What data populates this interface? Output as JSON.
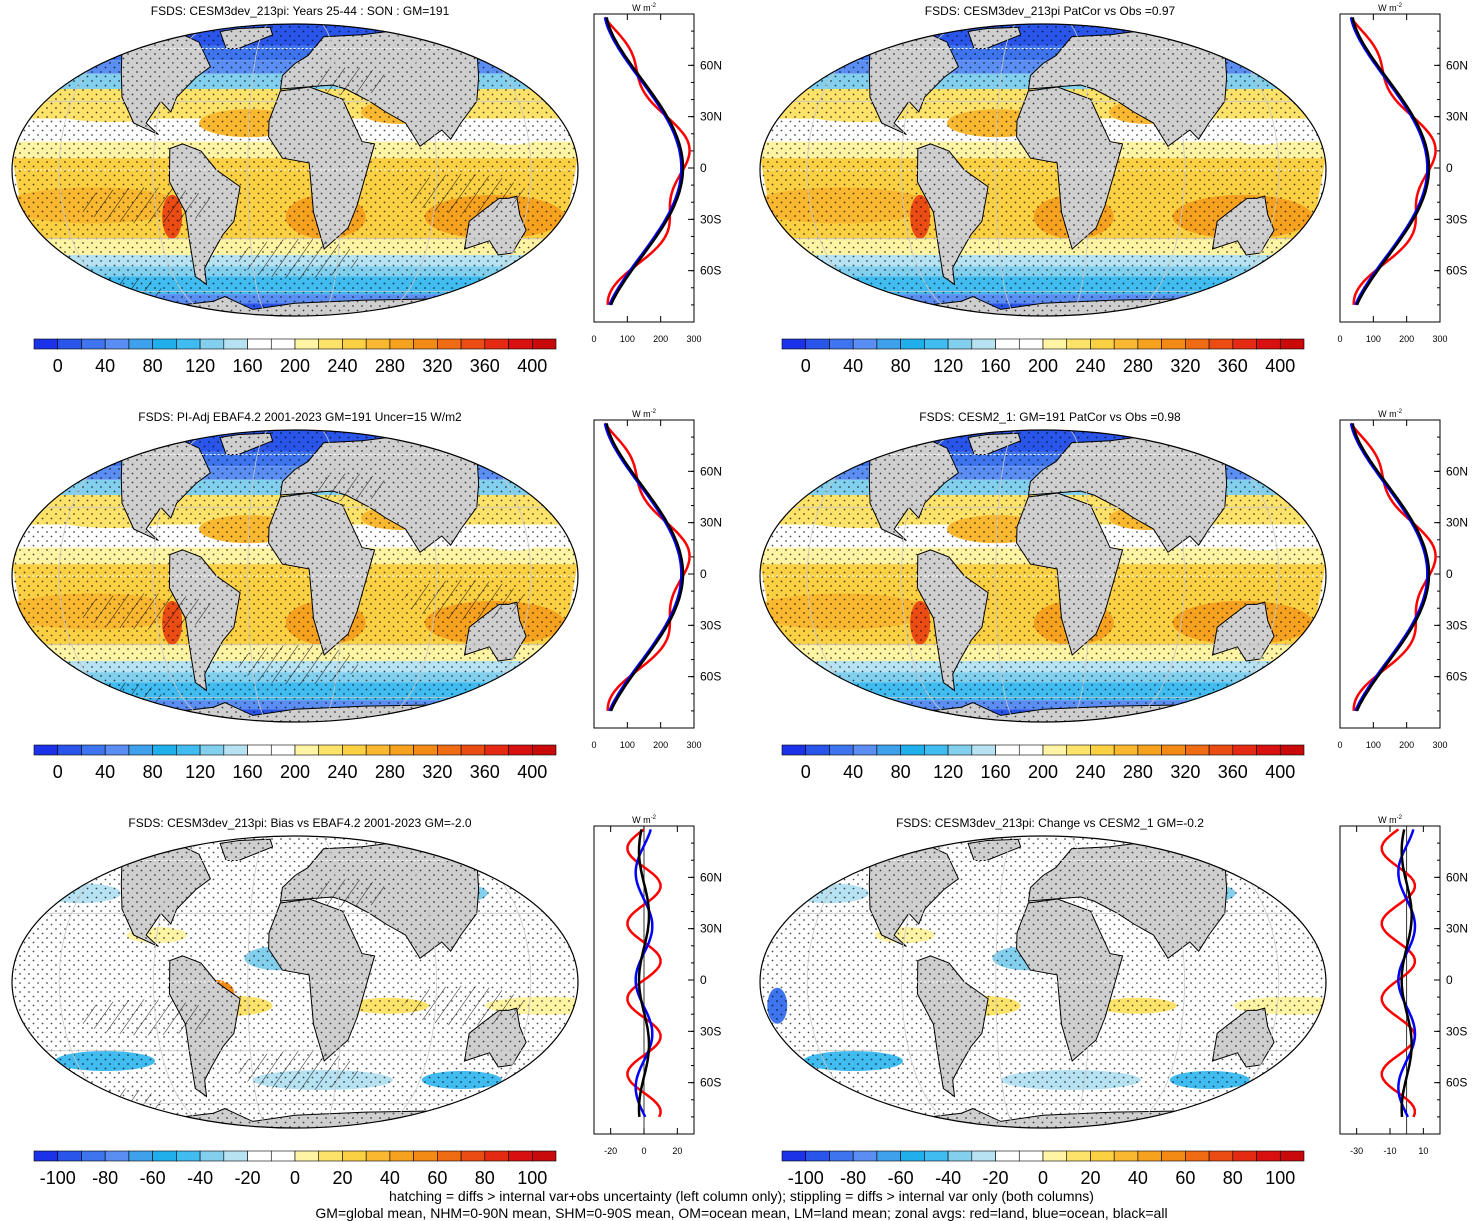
{
  "panels": [
    {
      "title": "FSDS: CESM3dev_213pi: Years 25-44 : SON : GM=191",
      "kind": "abs",
      "hatch": true
    },
    {
      "title": "FSDS: CESM3dev_213pi PatCor vs Obs =0.97",
      "kind": "abs",
      "hatch": false
    },
    {
      "title": "FSDS: PI-Adj EBAF4.2 2001-2023 GM=191 Uncer=15 W/m2",
      "kind": "abs",
      "hatch": true
    },
    {
      "title": "FSDS: CESM2_1: GM=191 PatCor vs Obs =0.98",
      "kind": "abs",
      "hatch": false
    },
    {
      "title": "FSDS: CESM3dev_213pi: Bias vs EBAF4.2 2001-2023  GM=-2.0",
      "kind": "diff",
      "hatch": true
    },
    {
      "title": "FSDS: CESM3dev_213pi: Change vs CESM2_1 GM=-0.2",
      "kind": "diff",
      "hatch": false
    }
  ],
  "colorbar_abs": {
    "labels": [
      "0",
      "40",
      "80",
      "120",
      "160",
      "200",
      "240",
      "280",
      "320",
      "360",
      "400"
    ],
    "colors": [
      "#1c32e8",
      "#2a55ea",
      "#3e74ee",
      "#5a8ef2",
      "#3fa0ec",
      "#1fb0ec",
      "#40bcf0",
      "#82cfee",
      "#b6e2f2",
      "#ffffff",
      "#ffffff",
      "#fff3a4",
      "#fde36a",
      "#fbd043",
      "#f9b830",
      "#f6a21f",
      "#f48a16",
      "#ef6c14",
      "#ea4c14",
      "#e42a12",
      "#d91010",
      "#c80a0a"
    ]
  },
  "colorbar_diff": {
    "labels": [
      "-100",
      "-80",
      "-60",
      "-40",
      "-20",
      "0",
      "20",
      "40",
      "60",
      "80",
      "100"
    ],
    "colors": [
      "#1c32e8",
      "#2a55ea",
      "#3e74ee",
      "#5a8ef2",
      "#3fa0ec",
      "#1fb0ec",
      "#40bcf0",
      "#82cfee",
      "#b6e2f2",
      "#ffffff",
      "#ffffff",
      "#fff3a4",
      "#fde36a",
      "#fbd043",
      "#f9b830",
      "#f6a21f",
      "#f48a16",
      "#ef6c14",
      "#ea4c14",
      "#e42a12",
      "#d91010",
      "#c80a0a"
    ]
  },
  "zonal_plot": {
    "unit_label": "W m",
    "unit_sup": "-2",
    "lat_labels": [
      "60N",
      "30N",
      "0",
      "30S",
      "60S"
    ],
    "lat_values": [
      60,
      30,
      0,
      -30,
      -60
    ],
    "x_ticks_abs": [
      "0",
      "100",
      "200",
      "300"
    ],
    "x_ticks_diff_left": [
      "-20",
      "0",
      "20"
    ],
    "x_ticks_diff_right": [
      "-30",
      "-10",
      "10"
    ],
    "colors": {
      "land": "#ff0000",
      "ocean": "#0000ff",
      "all": "#000000"
    }
  },
  "footer": {
    "line1": "hatching = diffs > internal var+obs uncertainty (left column only); stippling = diffs > internal var only (both columns)",
    "line2": "GM=global mean, NHM=0-90N mean, SHM=0-90S mean, OM=ocean mean, LM=land mean; zonal avgs: red=land, blue=ocean, black=all"
  }
}
